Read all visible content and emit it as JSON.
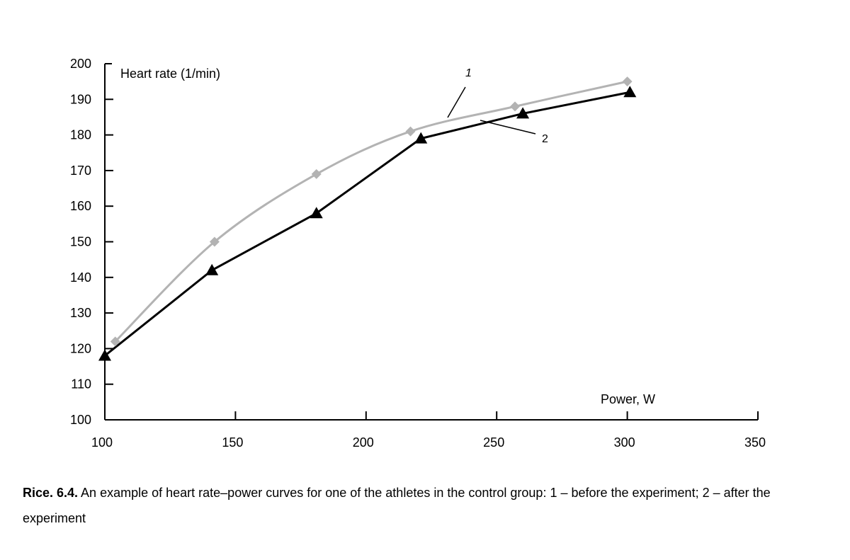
{
  "chart_data": {
    "type": "line",
    "x_ticks": [
      100,
      150,
      200,
      250,
      300,
      350
    ],
    "y_ticks": [
      100,
      110,
      120,
      130,
      140,
      150,
      160,
      170,
      180,
      190,
      200
    ],
    "xlim": [
      100,
      350
    ],
    "ylim": [
      100,
      200
    ],
    "xlabel": "Power, W",
    "ylabel": "Heart rate (1/min)",
    "grid": false,
    "legend": "none",
    "series": [
      {
        "name": "1",
        "marker": "diamond",
        "smooth": true,
        "color": "#b3b3b3",
        "x": [
          104,
          142,
          181,
          217,
          257,
          300
        ],
        "y": [
          122,
          150,
          169,
          181,
          188,
          195
        ]
      },
      {
        "name": "2",
        "marker": "triangle",
        "smooth": false,
        "color": "#000000",
        "x": [
          100,
          141,
          181,
          221,
          260,
          301
        ],
        "y": [
          118,
          142,
          158,
          179,
          186,
          192
        ]
      }
    ]
  },
  "caption": {
    "lead": "Rice. 6.4.",
    "text": " An example of heart rate–power curves for one of the athletes in the control group: 1 – before the experiment; 2 – after the experiment"
  }
}
